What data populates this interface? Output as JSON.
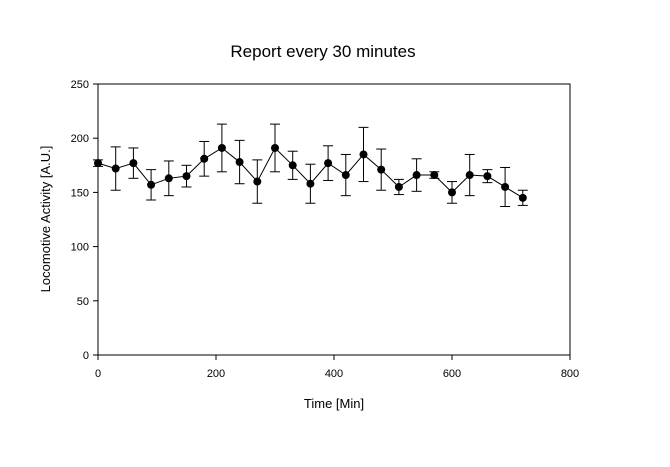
{
  "chart_data": {
    "type": "line",
    "title": "Report every 30 minutes",
    "xlabel": "Time [Min]",
    "ylabel": "Locomotive Activity [A.U.]",
    "xlim": [
      0,
      800
    ],
    "ylim": [
      0,
      250
    ],
    "xticks": [
      0,
      200,
      400,
      600,
      800
    ],
    "yticks": [
      0,
      50,
      100,
      150,
      200,
      250
    ],
    "grid": false,
    "legend": "none",
    "series": [
      {
        "color": "#000000",
        "marker": "circle",
        "x": [
          0,
          30,
          60,
          90,
          120,
          150,
          180,
          210,
          240,
          270,
          300,
          330,
          360,
          390,
          420,
          450,
          480,
          510,
          540,
          570,
          600,
          630,
          660,
          690,
          720
        ],
        "y": [
          177,
          172,
          177,
          157,
          163,
          165,
          181,
          191,
          178,
          160,
          191,
          175,
          158,
          177,
          166,
          185,
          171,
          155,
          166,
          166,
          150,
          166,
          165,
          155,
          145
        ],
        "error": [
          3,
          20,
          14,
          14,
          16,
          10,
          16,
          22,
          20,
          20,
          22,
          13,
          18,
          16,
          19,
          25,
          19,
          7,
          15,
          3,
          10,
          19,
          6,
          18,
          7
        ]
      }
    ]
  }
}
